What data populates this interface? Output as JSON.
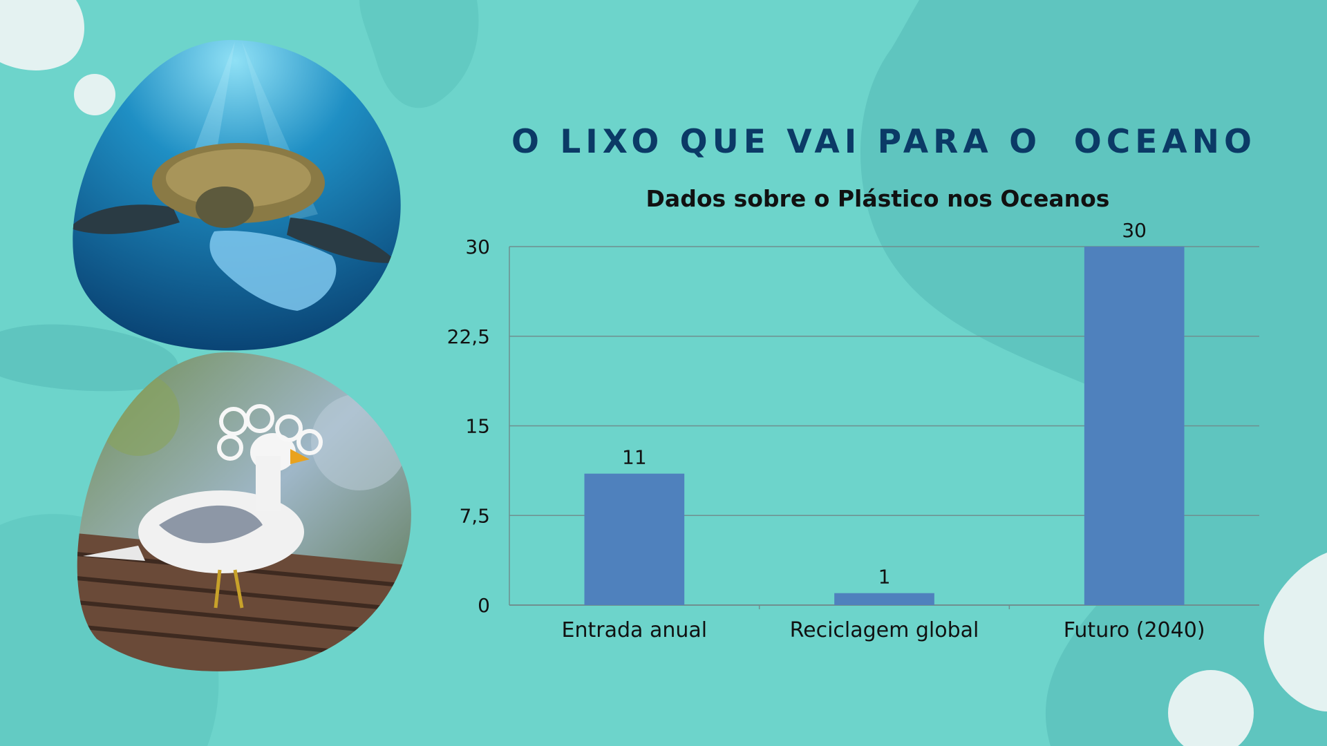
{
  "slide": {
    "title": "O LIXO QUE VAI PARA O  OCEANO"
  },
  "images": [
    {
      "name": "sea-turtle-with-plastic-bag-photo"
    },
    {
      "name": "seagull-with-plastic-rings-photo"
    }
  ],
  "colors": {
    "background": "#6dd4cb",
    "title": "#0b3a66",
    "bar": "#4f81bd",
    "gridline": "#6f8f8f"
  },
  "chart_data": {
    "type": "bar",
    "title": "Dados sobre o Plástico nos Oceanos",
    "categories": [
      "Entrada anual",
      "Reciclagem global",
      "Futuro (2040)"
    ],
    "values": [
      11,
      1,
      30
    ],
    "data_labels": [
      "11",
      "1",
      "30"
    ],
    "ylim": [
      0,
      30
    ],
    "yticks": [
      0,
      7.5,
      15,
      22.5,
      30
    ],
    "ytick_labels": [
      "0",
      "7,5",
      "15",
      "22,5",
      "30"
    ],
    "xlabel": "",
    "ylabel": "",
    "grid": true,
    "legend": "none"
  }
}
